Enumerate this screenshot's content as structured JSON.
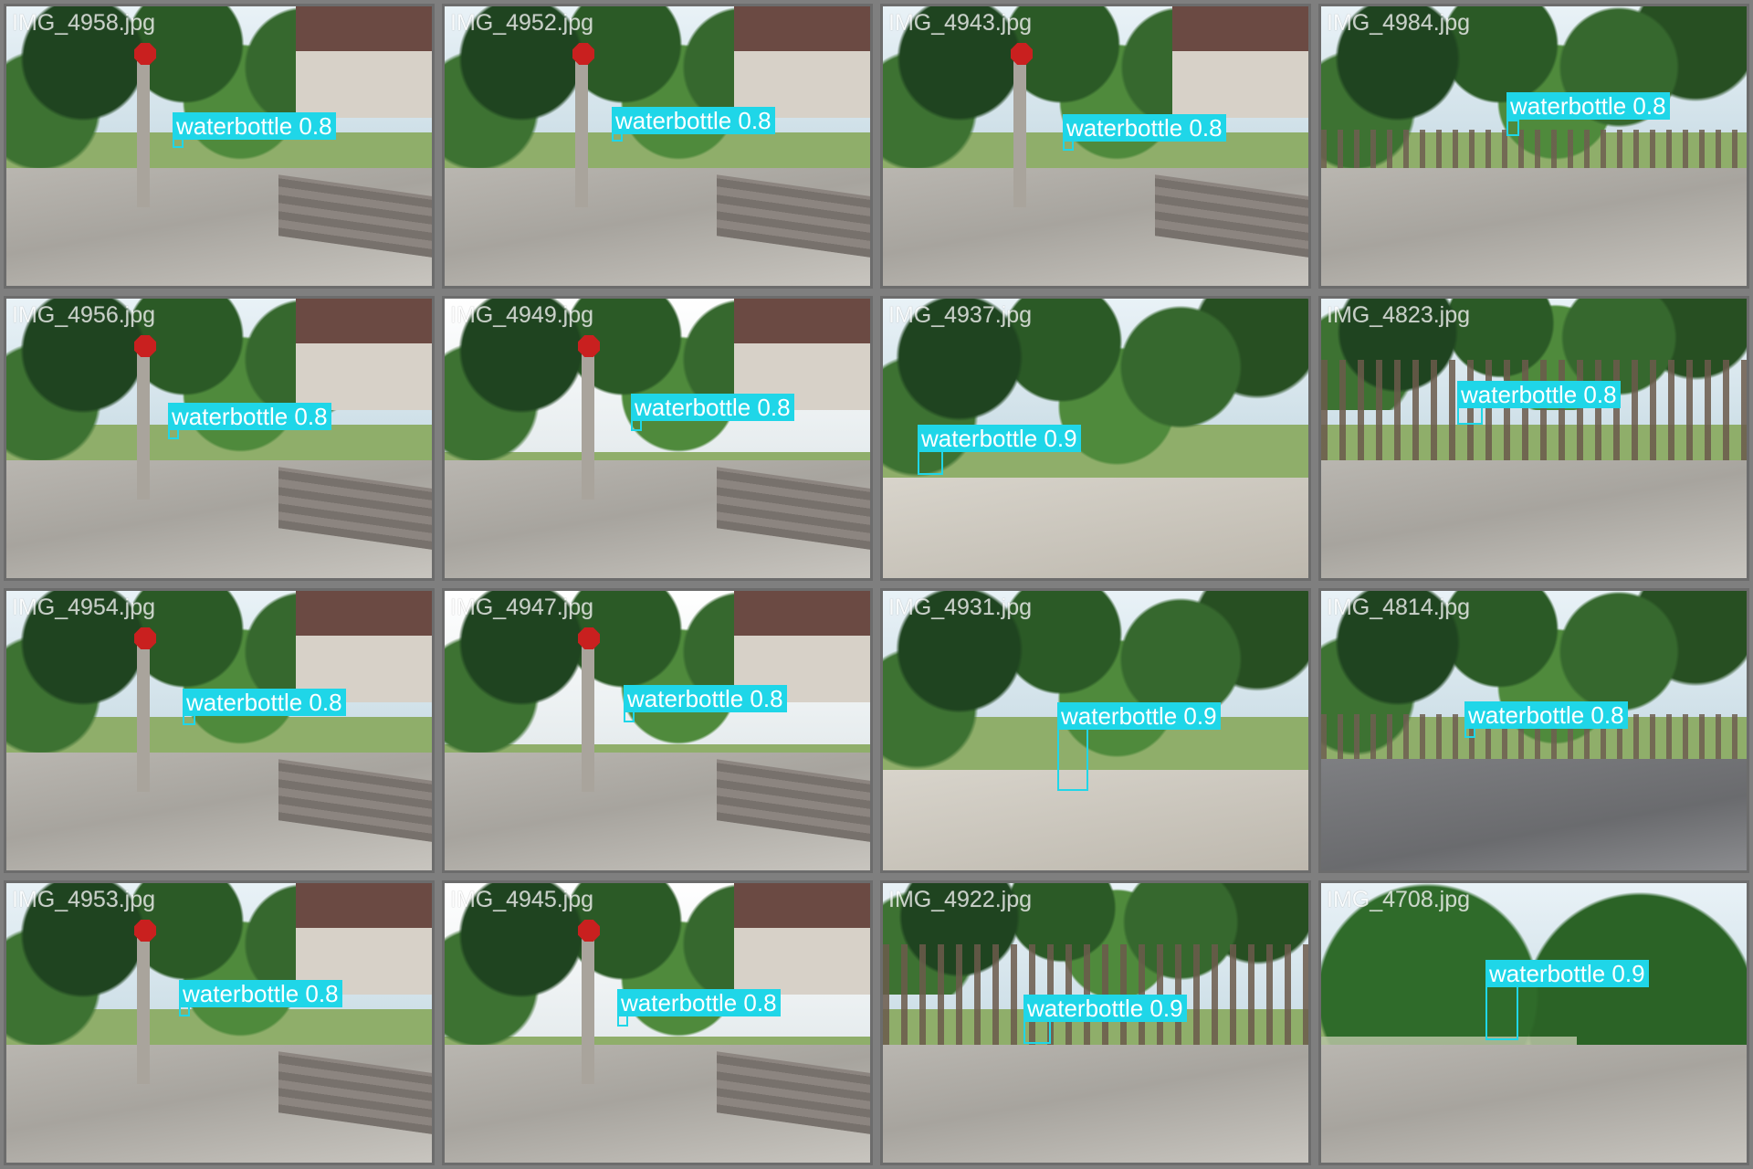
{
  "tiles": [
    {
      "filename": "IMG_4958.jpg",
      "label": "waterbottle 0.8",
      "variant": "street"
    },
    {
      "filename": "IMG_4952.jpg",
      "label": "waterbottle 0.8",
      "variant": "street"
    },
    {
      "filename": "IMG_4943.jpg",
      "label": "waterbottle 0.8",
      "variant": "street"
    },
    {
      "filename": "IMG_4984.jpg",
      "label": "waterbottle 0.8",
      "variant": "fence"
    },
    {
      "filename": "IMG_4956.jpg",
      "label": "waterbottle 0.8",
      "variant": "street"
    },
    {
      "filename": "IMG_4949.jpg",
      "label": "waterbottle 0.8",
      "variant": "bright"
    },
    {
      "filename": "IMG_4937.jpg",
      "label": "waterbottle 0.9",
      "variant": "garden"
    },
    {
      "filename": "IMG_4823.jpg",
      "label": "waterbottle 0.8",
      "variant": "fence-lg"
    },
    {
      "filename": "IMG_4954.jpg",
      "label": "waterbottle 0.8",
      "variant": "street"
    },
    {
      "filename": "IMG_4947.jpg",
      "label": "waterbottle 0.8",
      "variant": "bright"
    },
    {
      "filename": "IMG_4931.jpg",
      "label": "waterbottle 0.9",
      "variant": "garden"
    },
    {
      "filename": "IMG_4814.jpg",
      "label": "waterbottle 0.8",
      "variant": "road"
    },
    {
      "filename": "IMG_4953.jpg",
      "label": "waterbottle 0.8",
      "variant": "street"
    },
    {
      "filename": "IMG_4945.jpg",
      "label": "waterbottle 0.8",
      "variant": "bright"
    },
    {
      "filename": "IMG_4922.jpg",
      "label": "waterbottle 0.9",
      "variant": "fence-lg"
    },
    {
      "filename": "IMG_4708.jpg",
      "label": "waterbottle 0.9",
      "variant": "hedge"
    }
  ],
  "colors": {
    "detection": "#1fd6e8",
    "background": "#7f7f7f"
  }
}
